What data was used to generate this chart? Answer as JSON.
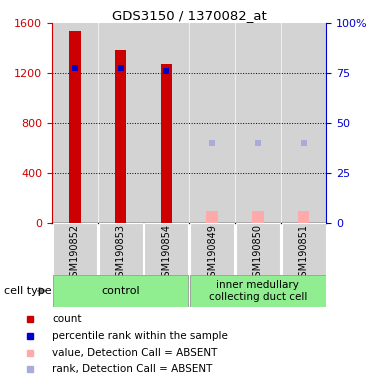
{
  "title": "GDS3150 / 1370082_at",
  "samples": [
    "GSM190852",
    "GSM190853",
    "GSM190854",
    "GSM190849",
    "GSM190850",
    "GSM190851"
  ],
  "count_values": [
    1540,
    1380,
    1270,
    null,
    null,
    null
  ],
  "count_color": "#cc0000",
  "absent_value_values": [
    null,
    null,
    null,
    90,
    95,
    90
  ],
  "absent_value_color": "#ffaaaa",
  "percentile_values": [
    1240,
    1240,
    1215,
    null,
    null,
    null
  ],
  "percentile_color": "#0000cc",
  "absent_rank_values": [
    null,
    null,
    null,
    640,
    640,
    640
  ],
  "absent_rank_color": "#aaaadd",
  "ylim_left": [
    0,
    1600
  ],
  "ylim_right": [
    0,
    100
  ],
  "yticks_left": [
    0,
    400,
    800,
    1200,
    1600
  ],
  "yticks_right": [
    0,
    25,
    50,
    75,
    100
  ],
  "yticklabels_right": [
    "0",
    "25",
    "50",
    "75",
    "100%"
  ],
  "plot_bg_color": "#ffffff",
  "col_bg_color": "#d3d3d3",
  "group_bg_color": "#90ee90",
  "left_axis_color": "#cc0000",
  "right_axis_color": "#0000cc",
  "grid_color": "black",
  "bar_width": 0.25,
  "marker_size": 5,
  "control_label": "control",
  "inner_label": "inner medullary\ncollecting duct cell",
  "cell_type_label": "cell type",
  "legend_items": [
    {
      "color": "#cc0000",
      "label": "count"
    },
    {
      "color": "#0000cc",
      "label": "percentile rank within the sample"
    },
    {
      "color": "#ffaaaa",
      "label": "value, Detection Call = ABSENT"
    },
    {
      "color": "#aaaadd",
      "label": "rank, Detection Call = ABSENT"
    }
  ]
}
